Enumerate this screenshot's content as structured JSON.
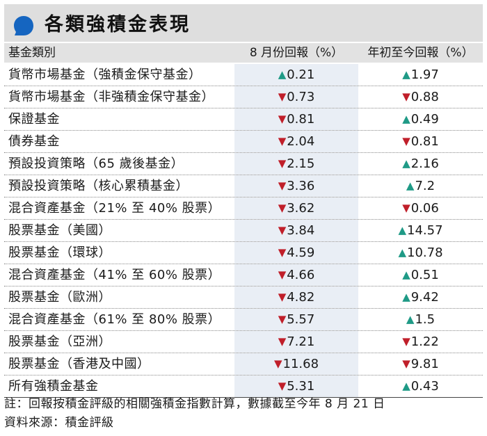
{
  "title": "各類強積金表現",
  "colors": {
    "up": "#1f9a86",
    "down": "#c01f2a",
    "icon": "#1565c0"
  },
  "headers": {
    "name": "基金類別",
    "month": "8 月份回報（%）",
    "ytd": "年初至今回報（%）"
  },
  "rows": [
    {
      "name": "貨幣市場基金（強積金保守基金）",
      "month": {
        "dir": "up",
        "value": "0.21"
      },
      "ytd": {
        "dir": "up",
        "value": "1.97"
      }
    },
    {
      "name": "貨幣市場基金（非強積金保守基金）",
      "month": {
        "dir": "down",
        "value": "0.73"
      },
      "ytd": {
        "dir": "down",
        "value": "0.88"
      }
    },
    {
      "name": "保證基金",
      "month": {
        "dir": "down",
        "value": "0.81"
      },
      "ytd": {
        "dir": "up",
        "value": "0.49"
      }
    },
    {
      "name": "債券基金",
      "month": {
        "dir": "down",
        "value": "2.04"
      },
      "ytd": {
        "dir": "down",
        "value": "0.81"
      }
    },
    {
      "name": "預設投資策略（65 歲後基金）",
      "month": {
        "dir": "down",
        "value": "2.15"
      },
      "ytd": {
        "dir": "up",
        "value": "2.16"
      }
    },
    {
      "name": "預設投資策略（核心累積基金）",
      "month": {
        "dir": "down",
        "value": "3.36"
      },
      "ytd": {
        "dir": "up",
        "value": "7.2"
      }
    },
    {
      "name": "混合資產基金（21% 至 40% 股票）",
      "month": {
        "dir": "down",
        "value": "3.62"
      },
      "ytd": {
        "dir": "down",
        "value": "0.06"
      }
    },
    {
      "name": "股票基金（美國）",
      "month": {
        "dir": "down",
        "value": "3.84"
      },
      "ytd": {
        "dir": "up",
        "value": "14.57"
      }
    },
    {
      "name": "股票基金（環球）",
      "month": {
        "dir": "down",
        "value": "4.59"
      },
      "ytd": {
        "dir": "up",
        "value": "10.78"
      }
    },
    {
      "name": "混合資產基金（41% 至 60% 股票）",
      "month": {
        "dir": "down",
        "value": "4.66"
      },
      "ytd": {
        "dir": "up",
        "value": "0.51"
      }
    },
    {
      "name": "股票基金（歐洲）",
      "month": {
        "dir": "down",
        "value": "4.82"
      },
      "ytd": {
        "dir": "up",
        "value": "9.42"
      }
    },
    {
      "name": "混合資產基金（61% 至 80% 股票）",
      "month": {
        "dir": "down",
        "value": "5.57"
      },
      "ytd": {
        "dir": "up",
        "value": "1.5"
      }
    },
    {
      "name": "股票基金（亞洲）",
      "month": {
        "dir": "down",
        "value": "7.21"
      },
      "ytd": {
        "dir": "down",
        "value": "1.22"
      }
    },
    {
      "name": "股票基金（香港及中國）",
      "month": {
        "dir": "down",
        "value": "11.68"
      },
      "ytd": {
        "dir": "down",
        "value": "9.81"
      }
    },
    {
      "name": "所有強積金基金",
      "month": {
        "dir": "down",
        "value": "5.31"
      },
      "ytd": {
        "dir": "up",
        "value": "0.43"
      }
    }
  ],
  "note": "註：回報按積金評級的相關強積金指數計算，數據截至今年 8 月 21 日",
  "source": "資料來源：積金評級"
}
